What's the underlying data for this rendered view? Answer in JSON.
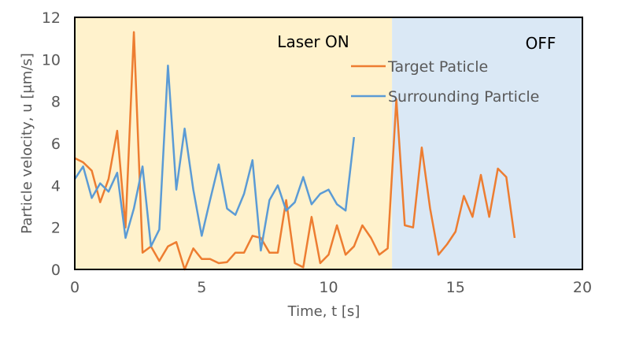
{
  "chart_data": {
    "type": "line",
    "xlabel": "Time, t [s]",
    "ylabel": "Particle velocity, u [μm/s]",
    "xlim": [
      0,
      20
    ],
    "ylim": [
      0,
      12
    ],
    "x_ticks": [
      "0",
      "5",
      "10",
      "15",
      "20"
    ],
    "y_ticks": [
      "0",
      "2",
      "4",
      "6",
      "8",
      "10",
      "12"
    ],
    "grid": false,
    "legend_position": "top-right",
    "regions": [
      {
        "label": "Laser ON",
        "x_start": 0,
        "x_end": 12.5,
        "color": "#fff2cc"
      },
      {
        "label": "OFF",
        "x_start": 12.5,
        "x_end": 20,
        "color": "#dae8f5"
      }
    ],
    "series": [
      {
        "name": "Target Paticle",
        "color": "#ed7d31",
        "x": [
          0,
          0.33,
          0.67,
          1.0,
          1.33,
          1.67,
          2.0,
          2.33,
          2.67,
          3.0,
          3.33,
          3.67,
          4.0,
          4.33,
          4.67,
          5.0,
          5.33,
          5.67,
          6.0,
          6.33,
          6.67,
          7.0,
          7.33,
          7.67,
          8.0,
          8.33,
          8.67,
          9.0,
          9.33,
          9.67,
          10.0,
          10.33,
          10.67,
          11.0,
          11.33,
          11.67,
          12.0,
          12.33,
          12.67,
          13.0,
          13.33,
          13.67,
          14.0,
          14.33,
          14.67,
          15.0,
          15.33,
          15.67,
          16.0,
          16.33,
          16.67,
          17.0,
          17.33
        ],
        "y": [
          5.3,
          5.1,
          4.7,
          3.2,
          4.3,
          6.6,
          2.0,
          11.3,
          0.8,
          1.1,
          0.4,
          1.1,
          1.3,
          0.0,
          1.0,
          0.5,
          0.5,
          0.3,
          0.35,
          0.8,
          0.8,
          1.6,
          1.5,
          0.8,
          0.8,
          3.3,
          0.3,
          0.1,
          2.5,
          0.3,
          0.7,
          2.1,
          0.7,
          1.1,
          2.1,
          1.5,
          0.7,
          1.0,
          8.1,
          2.1,
          2.0,
          5.8,
          2.9,
          0.7,
          1.2,
          1.8,
          3.5,
          2.5,
          4.5,
          2.5,
          4.8,
          4.4,
          1.5
        ]
      },
      {
        "name": "Surrounding Particle",
        "color": "#5b9bd5",
        "x": [
          0,
          0.33,
          0.67,
          1.0,
          1.33,
          1.67,
          2.0,
          2.33,
          2.67,
          3.0,
          3.33,
          3.67,
          4.0,
          4.33,
          4.67,
          5.0,
          5.33,
          5.67,
          6.0,
          6.33,
          6.67,
          7.0,
          7.33,
          7.67,
          8.0,
          8.33,
          8.67,
          9.0,
          9.33,
          9.67,
          10.0,
          10.33,
          10.67,
          11.0
        ],
        "y": [
          4.3,
          4.9,
          3.4,
          4.1,
          3.7,
          4.6,
          1.5,
          2.9,
          4.9,
          1.1,
          1.9,
          9.7,
          3.8,
          6.7,
          3.8,
          1.6,
          3.3,
          5.0,
          2.9,
          2.6,
          3.6,
          5.2,
          0.9,
          3.3,
          4.0,
          2.8,
          3.2,
          4.4,
          3.1,
          3.6,
          3.8,
          3.1,
          2.8,
          6.3
        ]
      }
    ]
  }
}
